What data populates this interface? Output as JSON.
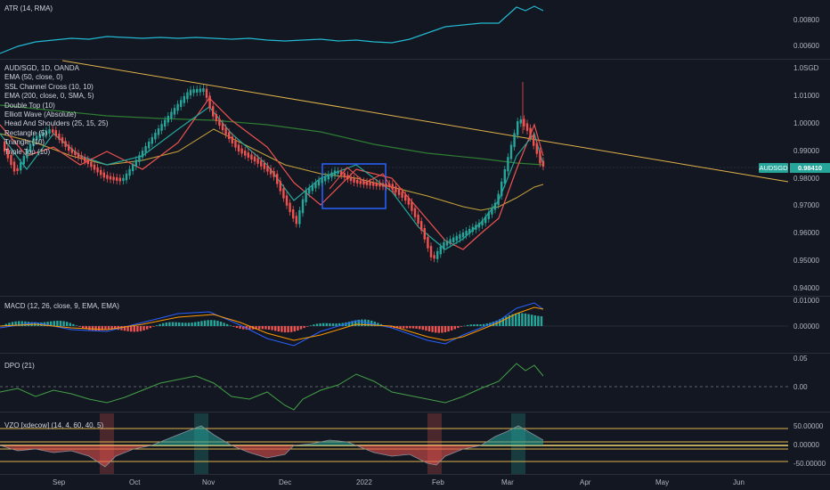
{
  "atr": {
    "legend": "ATR (14, RMA)",
    "axis": [
      "0.00800",
      "0.00600"
    ]
  },
  "main": {
    "legend": [
      "AUD/SGD, 1D, OANDA",
      "EMA (50, close, 0)",
      "SSL Channel Cross (10, 10)",
      "EMA (200, close, 0, SMA, 5)",
      "Double Top (10)",
      "Elliott Wave (Absolute)",
      "Head And Shoulders (25, 15, 25)",
      "Rectangle (5)",
      "Triangle (10)",
      "Triple Top (10)"
    ],
    "axis": [
      "1.0SGD",
      "1.01000",
      "1.00000",
      "0.99000",
      "0.98000",
      "0.97000",
      "0.96000",
      "0.95000",
      "0.94000"
    ],
    "symbol_tag": "AUDSGD",
    "price_tag": "0.98410"
  },
  "macd": {
    "legend": "MACD (12, 26, close, 9, EMA, EMA)",
    "axis": [
      "0.01000",
      "0.00000"
    ]
  },
  "dpo": {
    "legend": "DPO (21)",
    "axis": [
      "0.05",
      "0.00"
    ]
  },
  "vzo": {
    "legend": "VZO [xdecow] (14, 4, 60, 40, 5)",
    "axis": [
      "50.00000",
      "0.00000",
      "-50.00000"
    ]
  },
  "dates": [
    "Sep",
    "Oct",
    "Nov",
    "Dec",
    "2022",
    "Feb",
    "Mar",
    "Apr",
    "May",
    "Jun"
  ],
  "colors": {
    "up": "#26a69a",
    "down": "#ef5350",
    "trendline": "#e0b34a",
    "rectangle": "#2962ff"
  }
}
